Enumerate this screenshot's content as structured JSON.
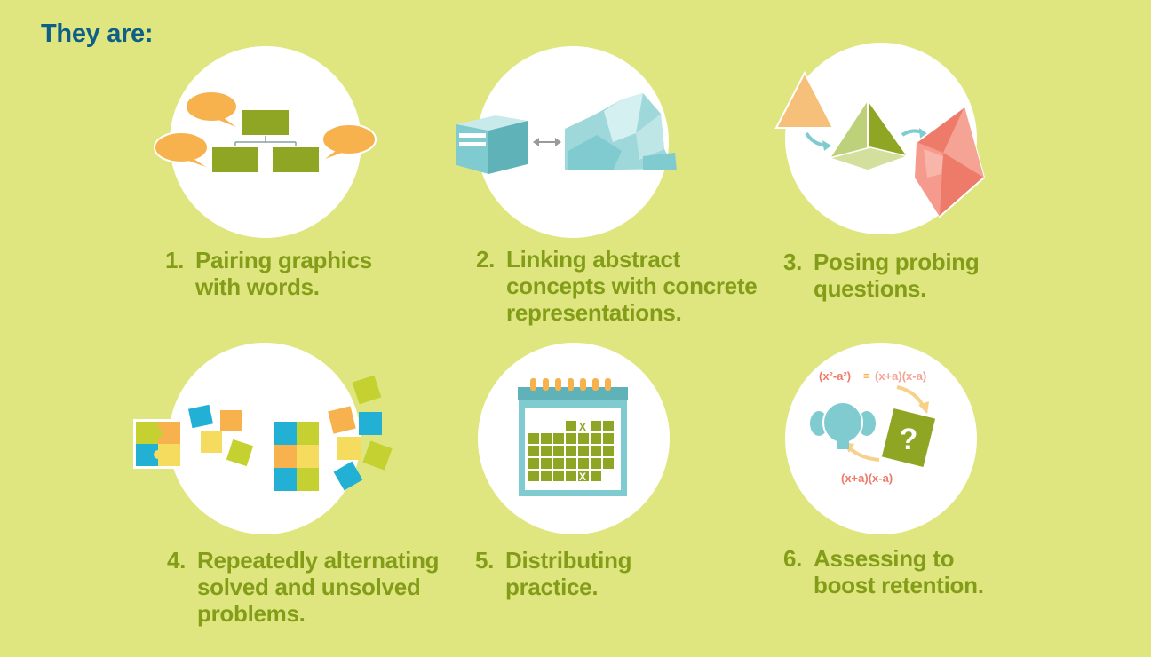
{
  "heading": "They are:",
  "items": [
    {
      "number": "1.",
      "lines": [
        "Pairing graphics",
        "with words."
      ]
    },
    {
      "number": "2.",
      "lines": [
        "Linking abstract",
        "concepts with concrete",
        "representations."
      ]
    },
    {
      "number": "3.",
      "lines": [
        "Posing probing",
        "questions."
      ]
    },
    {
      "number": "4.",
      "lines": [
        "Repeatedly alternating",
        "solved and unsolved",
        "problems."
      ]
    },
    {
      "number": "5.",
      "lines": [
        "Distributing",
        "practice."
      ]
    },
    {
      "number": "6.",
      "lines": [
        "Assessing to",
        "boost retention."
      ]
    }
  ],
  "illustration_text": {
    "calendar_mark": "X",
    "question_mark": "?",
    "formula_top_left": "(x²-a²)",
    "formula_equals": "=",
    "formula_top_right": "(x+a)(x-a)",
    "formula_bottom": "(x+a)(x-a)"
  },
  "colors": {
    "background": "#dfe680",
    "heading": "#0d5f87",
    "item_text": "#849d18",
    "olive": "#8fa524",
    "orange": "#f7b24e",
    "teal": "#7fcbcf",
    "coral": "#ee7a6a"
  },
  "icons": [
    "speech-bubble-icon",
    "org-chart-icon",
    "cube-icon",
    "double-arrow-icon",
    "iceberg-icon",
    "triangle-icon",
    "pyramid-icon",
    "crystal-icon",
    "puzzle-icon",
    "calendar-icon",
    "student-icon",
    "question-card-icon"
  ]
}
